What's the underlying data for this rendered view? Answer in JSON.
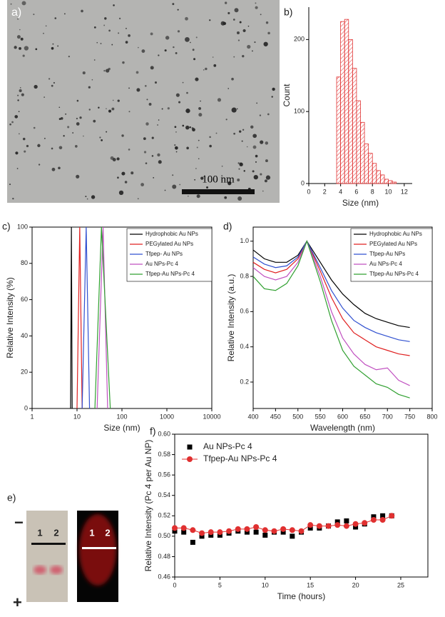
{
  "images": [
    {
      "label": "a)",
      "scale_bar": "100 nm"
    },
    {
      "label": "e)",
      "minus": "−",
      "plus": "+",
      "lanes": [
        "1",
        "2"
      ],
      "lanes_fluorescence": [
        "1",
        "2"
      ]
    }
  ],
  "chart_data": [
    {
      "type": "histogram",
      "panel_label": "b)",
      "xlabel": "Size (nm)",
      "ylabel": "Count",
      "color": "#e03030",
      "bins": [
        3.5,
        4,
        4.5,
        5,
        5.5,
        6,
        6.5,
        7,
        7.5,
        8,
        8.5,
        9,
        9.5,
        10,
        10.5,
        11
      ],
      "values": [
        148,
        225,
        228,
        200,
        160,
        115,
        85,
        55,
        42,
        28,
        18,
        12,
        6,
        4,
        2
      ],
      "xlim": [
        0,
        13
      ],
      "xticks": [
        0,
        2,
        4,
        6,
        8,
        10,
        12
      ],
      "ylim": [
        0,
        245
      ],
      "yticks": [
        0,
        100,
        200
      ]
    },
    {
      "type": "line",
      "panel_label": "c)",
      "xlabel": "Size (nm)",
      "ylabel": "Relative Intensity (%)",
      "xscale": "log",
      "xlim": [
        1,
        10000
      ],
      "xticks": [
        1,
        10,
        100,
        1000,
        10000
      ],
      "ylim": [
        0,
        100
      ],
      "yticks": [
        0,
        20,
        40,
        60,
        80,
        100
      ],
      "series": [
        {
          "name": "Hydrophobic Au NPs",
          "color": "#000000",
          "x": [
            7.2,
            7.5,
            7.8
          ],
          "values": [
            0,
            100,
            0
          ]
        },
        {
          "name": "PEGylated Au NPs",
          "color": "#e02020",
          "x": [
            10,
            11.5,
            13
          ],
          "values": [
            0,
            100,
            0
          ]
        },
        {
          "name": "Tfpep- Au NPs",
          "color": "#3050d0",
          "x": [
            13,
            16,
            19
          ],
          "values": [
            0,
            100,
            0
          ]
        },
        {
          "name": "Au NPs-Pc 4",
          "color": "#c050c0",
          "x": [
            28,
            38,
            48
          ],
          "values": [
            0,
            100,
            0
          ]
        },
        {
          "name": "Tfpep-Au NPs-Pc 4",
          "color": "#30a030",
          "x": [
            25,
            35,
            55
          ],
          "values": [
            0,
            100,
            0
          ]
        }
      ]
    },
    {
      "type": "line",
      "panel_label": "d)",
      "xlabel": "Wavelength (nm)",
      "ylabel": "Relative Intensity (a.u.)",
      "xlim": [
        400,
        800
      ],
      "xticks": [
        400,
        450,
        500,
        550,
        600,
        650,
        700,
        750,
        800
      ],
      "ylim": [
        0.05,
        1.08
      ],
      "yticks": [
        0.2,
        0.4,
        0.6,
        0.8,
        {
          "value": 1,
          "label": "1.0"
        }
      ],
      "series": [
        {
          "name": "Hydrophobic Au NPs",
          "color": "#000000",
          "x": [
            400,
            425,
            450,
            475,
            500,
            520,
            550,
            575,
            600,
            625,
            650,
            675,
            700,
            725,
            750
          ],
          "values": [
            0.95,
            0.9,
            0.88,
            0.88,
            0.92,
            1.0,
            0.88,
            0.78,
            0.7,
            0.64,
            0.59,
            0.56,
            0.54,
            0.52,
            0.51
          ]
        },
        {
          "name": "PEGylated Au NPs",
          "color": "#e02020",
          "x": [
            400,
            425,
            450,
            475,
            500,
            520,
            550,
            575,
            600,
            625,
            650,
            675,
            700,
            725,
            750
          ],
          "values": [
            0.88,
            0.84,
            0.82,
            0.84,
            0.9,
            1.0,
            0.83,
            0.68,
            0.56,
            0.48,
            0.44,
            0.4,
            0.38,
            0.36,
            0.35
          ]
        },
        {
          "name": "Tfpep-Au NPs",
          "color": "#3050d0",
          "x": [
            400,
            425,
            450,
            475,
            500,
            520,
            550,
            575,
            600,
            625,
            650,
            675,
            700,
            725,
            750
          ],
          "values": [
            0.91,
            0.87,
            0.85,
            0.86,
            0.91,
            1.0,
            0.85,
            0.72,
            0.62,
            0.55,
            0.51,
            0.48,
            0.46,
            0.44,
            0.43
          ]
        },
        {
          "name": "Au NPs-Pc 4",
          "color": "#c050c0",
          "x": [
            400,
            425,
            450,
            475,
            500,
            520,
            550,
            575,
            600,
            625,
            650,
            675,
            700,
            725,
            750
          ],
          "values": [
            0.85,
            0.8,
            0.78,
            0.8,
            0.88,
            1.0,
            0.8,
            0.6,
            0.45,
            0.36,
            0.3,
            0.27,
            0.28,
            0.21,
            0.18
          ]
        },
        {
          "name": "Tfpep-Au NPs-Pc 4",
          "color": "#30a030",
          "x": [
            400,
            425,
            450,
            475,
            500,
            520,
            550,
            575,
            600,
            625,
            650,
            675,
            700,
            725,
            750
          ],
          "values": [
            0.8,
            0.73,
            0.72,
            0.76,
            0.86,
            1.0,
            0.77,
            0.55,
            0.38,
            0.29,
            0.24,
            0.19,
            0.17,
            0.13,
            0.11
          ]
        }
      ]
    },
    {
      "type": "scatter",
      "panel_label": "f)",
      "xlabel": "Time (hours)",
      "ylabel": "Relative Intensity (Pc 4 per Au NP)",
      "xlim": [
        0,
        28
      ],
      "xticks": [
        0,
        5,
        10,
        15,
        20,
        25
      ],
      "ylim": [
        0.46,
        0.6
      ],
      "yticks": [
        0.46,
        0.48,
        {
          "value": 0.5,
          "label": "0.50"
        },
        0.52,
        0.54,
        0.56,
        0.58,
        {
          "value": 0.6,
          "label": "0.60"
        }
      ],
      "series": [
        {
          "name": "Au NPs-Pc 4",
          "color": "#000000",
          "marker": "square",
          "line": false,
          "x": [
            0,
            1,
            2,
            3,
            4,
            5,
            6,
            7,
            8,
            9,
            10,
            11,
            12,
            13,
            14,
            15,
            16,
            17,
            18,
            19,
            20,
            21,
            22,
            23,
            24
          ],
          "values": [
            0.505,
            0.504,
            0.494,
            0.5,
            0.501,
            0.501,
            0.503,
            0.505,
            0.504,
            0.504,
            0.501,
            0.504,
            0.504,
            0.5,
            0.504,
            0.508,
            0.508,
            0.51,
            0.514,
            0.515,
            0.509,
            0.512,
            0.519,
            0.52,
            0.52
          ]
        },
        {
          "name": "Tfpep-Au NPs-Pc 4",
          "color": "#e03030",
          "marker": "circle",
          "line": true,
          "x": [
            0,
            1,
            2,
            3,
            4,
            5,
            6,
            7,
            8,
            9,
            10,
            11,
            12,
            13,
            14,
            15,
            16,
            17,
            18,
            19,
            20,
            21,
            22,
            23,
            24
          ],
          "values": [
            0.508,
            0.508,
            0.506,
            0.503,
            0.504,
            0.504,
            0.505,
            0.507,
            0.507,
            0.509,
            0.506,
            0.505,
            0.507,
            0.506,
            0.505,
            0.511,
            0.51,
            0.51,
            0.511,
            0.51,
            0.512,
            0.513,
            0.516,
            0.516,
            0.52
          ]
        }
      ]
    }
  ]
}
